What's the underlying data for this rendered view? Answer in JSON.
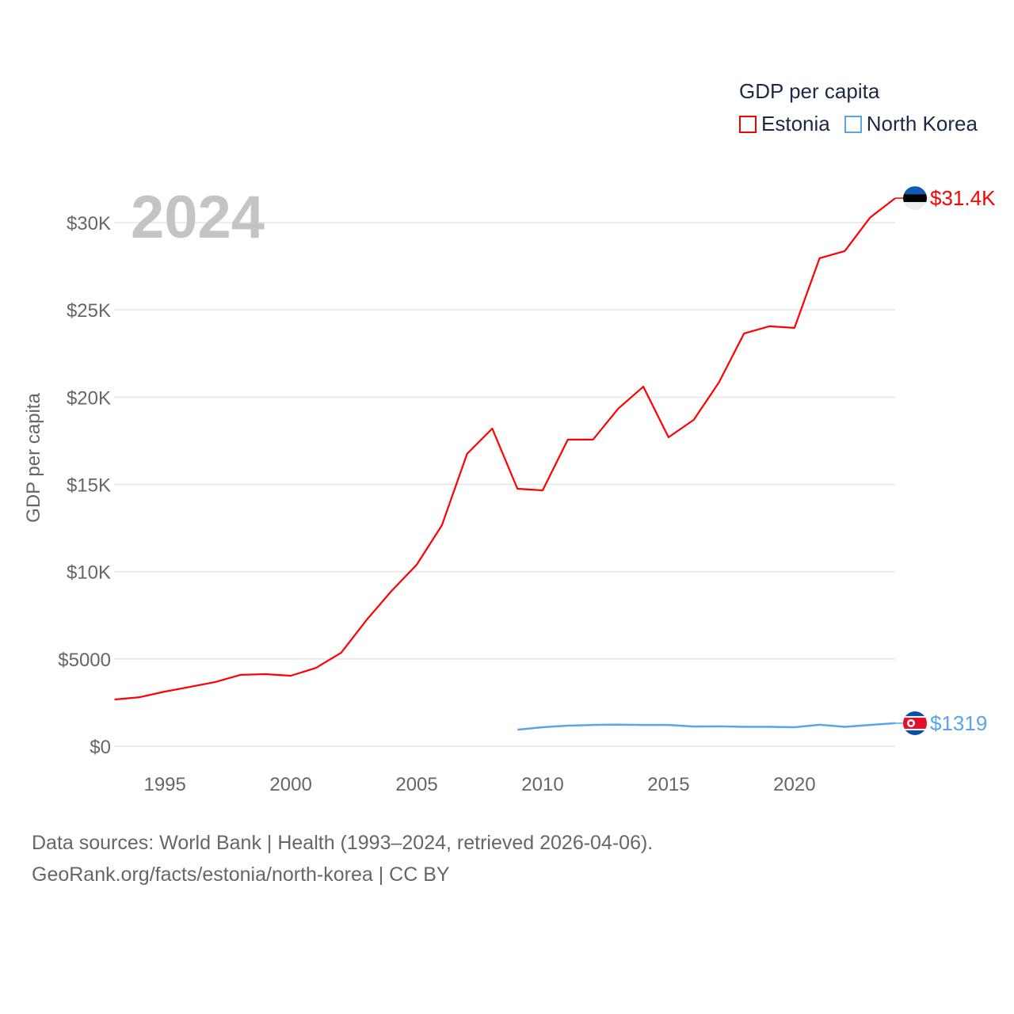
{
  "chart_data": {
    "type": "line",
    "title": "GDP per capita",
    "ylabel": "GDP per capita",
    "xlabel": "",
    "year_label": "2024",
    "xlim": [
      1993,
      2024
    ],
    "ylim": [
      0,
      32000
    ],
    "x_ticks": [
      1995,
      2000,
      2005,
      2010,
      2015,
      2020
    ],
    "x_tick_labels": [
      "1995",
      "2000",
      "2005",
      "2010",
      "2015",
      "2020"
    ],
    "y_ticks": [
      0,
      5000,
      10000,
      15000,
      20000,
      25000,
      30000
    ],
    "y_tick_labels": [
      "$0",
      "$5000",
      "$10K",
      "$15K",
      "$20K",
      "$25K",
      "$30K"
    ],
    "grid": true,
    "legend_position": "top-right",
    "series": [
      {
        "name": "Estonia",
        "color": "#ff0000",
        "end_label": "$31.4K",
        "x": [
          1993,
          1994,
          1995,
          1996,
          1997,
          1998,
          1999,
          2000,
          2001,
          2002,
          2003,
          2004,
          2005,
          2006,
          2007,
          2008,
          2009,
          2010,
          2011,
          2012,
          2013,
          2014,
          2015,
          2016,
          2017,
          2018,
          2019,
          2020,
          2021,
          2022,
          2023,
          2024
        ],
        "values": [
          2680,
          2810,
          3130,
          3400,
          3680,
          4090,
          4130,
          4040,
          4490,
          5360,
          7220,
          8900,
          10400,
          12660,
          16750,
          18200,
          14750,
          14660,
          17570,
          17570,
          19340,
          20600,
          17700,
          18700,
          20840,
          23650,
          24060,
          23970,
          27960,
          28370,
          30280,
          31400
        ]
      },
      {
        "name": "North Korea",
        "color": "#5aa5ea",
        "end_label": "$1319",
        "x": [
          2009,
          2010,
          2011,
          2012,
          2013,
          2014,
          2015,
          2016,
          2017,
          2018,
          2019,
          2020,
          2021,
          2022,
          2023,
          2024
        ],
        "values": [
          950,
          1090,
          1180,
          1220,
          1240,
          1220,
          1220,
          1130,
          1140,
          1110,
          1110,
          1090,
          1230,
          1110,
          1220,
          1319
        ]
      }
    ]
  },
  "footer": {
    "line1": "Data sources: World Bank | Health (1993–2024, retrieved 2026-04-06).",
    "line2": "GeoRank.org/facts/estonia/north-korea | CC BY"
  }
}
